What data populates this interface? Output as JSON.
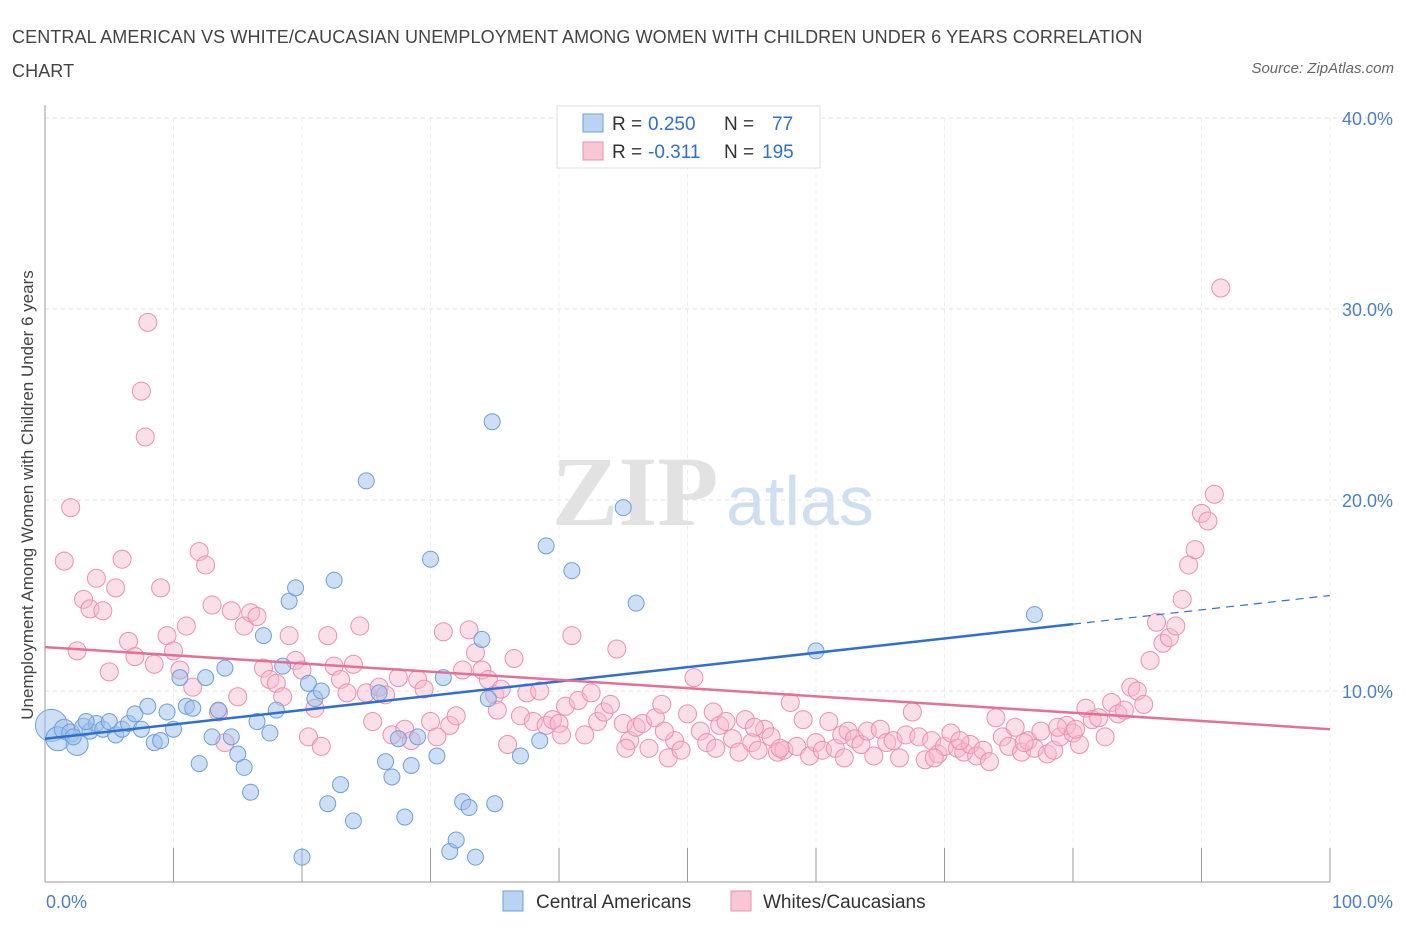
{
  "title": "CENTRAL AMERICAN VS WHITE/CAUCASIAN UNEMPLOYMENT AMONG WOMEN WITH CHILDREN UNDER 6 YEARS CORRELATION CHART",
  "source": "Source: ZipAtlas.com",
  "watermark": {
    "zip": "ZIP",
    "atlas": "atlas"
  },
  "legend": {
    "series1": {
      "r_label": "R = ",
      "r_value": "0.250",
      "n_label": "N = ",
      "n_value": "77"
    },
    "series2": {
      "r_label": "R = ",
      "r_value": "-0.311",
      "n_label": "N = ",
      "n_value": "195"
    }
  },
  "chart_data": {
    "type": "scatter",
    "title": "CENTRAL AMERICAN VS WHITE/CAUCASIAN UNEMPLOYMENT AMONG WOMEN WITH CHILDREN UNDER 6 YEARS CORRELATION CHART",
    "ylabel": "Unemployment Among Women with Children Under 6 years",
    "xlim": [
      0,
      100
    ],
    "ylim": [
      0,
      40
    ],
    "x_ticks": [
      "0.0%",
      "100.0%"
    ],
    "y_ticks": [
      {
        "value": 10,
        "label": "10.0%"
      },
      {
        "value": 20,
        "label": "20.0%"
      },
      {
        "value": 30,
        "label": "30.0%"
      },
      {
        "value": 40,
        "label": "40.0%"
      }
    ],
    "grid": true,
    "legend_position": "top-center",
    "series": [
      {
        "name": "Central Americans",
        "color": "#9bbfea",
        "stroke": "#6e9fdc",
        "line_color": "#2f6fd0",
        "trend": {
          "x0": 0,
          "y0": 7.5,
          "x1": 80,
          "y1": 13.5,
          "dashed_to_x": 100,
          "dashed_to_y": 15.0
        },
        "points": [
          [
            0.5,
            8.2,
            16
          ],
          [
            1,
            7.5,
            12
          ],
          [
            1.5,
            8.0,
            10
          ],
          [
            2,
            7.8,
            9
          ],
          [
            2.5,
            7.2,
            11
          ],
          [
            3,
            8.1,
            9
          ],
          [
            3.5,
            7.9,
            8
          ],
          [
            4,
            8.3,
            8
          ],
          [
            4.5,
            8.0,
            8
          ],
          [
            5,
            8.4,
            8
          ],
          [
            5.5,
            7.7,
            8
          ],
          [
            6,
            8.0,
            8
          ],
          [
            6.5,
            8.3,
            8
          ],
          [
            7,
            8.8,
            8
          ],
          [
            7.5,
            8.0,
            8
          ],
          [
            8,
            9.2,
            8
          ],
          [
            8.5,
            7.3,
            8
          ],
          [
            9,
            7.4,
            8
          ],
          [
            9.5,
            8.9,
            8
          ],
          [
            10,
            8.0,
            8
          ],
          [
            10.5,
            10.7,
            8
          ],
          [
            11,
            9.2,
            8
          ],
          [
            11.5,
            9.1,
            8
          ],
          [
            12,
            6.2,
            8
          ],
          [
            12.5,
            10.7,
            8
          ],
          [
            13,
            7.6,
            8
          ],
          [
            13.5,
            9.0,
            8
          ],
          [
            14,
            11.2,
            8
          ],
          [
            14.5,
            7.6,
            8
          ],
          [
            15,
            6.7,
            8
          ],
          [
            15.5,
            6.0,
            8
          ],
          [
            16,
            4.7,
            8
          ],
          [
            16.5,
            8.4,
            8
          ],
          [
            17,
            12.9,
            8
          ],
          [
            17.5,
            7.8,
            8
          ],
          [
            18,
            9.0,
            8
          ],
          [
            18.5,
            11.3,
            8
          ],
          [
            19,
            14.7,
            8
          ],
          [
            19.5,
            15.4,
            8
          ],
          [
            20,
            1.3,
            8
          ],
          [
            20.5,
            10.4,
            8
          ],
          [
            21,
            9.6,
            8
          ],
          [
            21.5,
            10.0,
            8
          ],
          [
            22,
            4.1,
            8
          ],
          [
            22.5,
            15.8,
            8
          ],
          [
            23,
            5.1,
            8
          ],
          [
            24,
            3.2,
            8
          ],
          [
            25,
            21.0,
            8
          ],
          [
            26,
            9.9,
            8
          ],
          [
            26.5,
            6.3,
            8
          ],
          [
            27,
            5.5,
            8
          ],
          [
            27.5,
            7.5,
            8
          ],
          [
            28,
            3.4,
            8
          ],
          [
            28.5,
            6.1,
            8
          ],
          [
            29,
            7.6,
            8
          ],
          [
            30,
            16.9,
            8
          ],
          [
            30.5,
            6.6,
            8
          ],
          [
            31,
            10.7,
            8
          ],
          [
            31.5,
            1.6,
            8
          ],
          [
            32,
            2.2,
            8
          ],
          [
            32.5,
            4.2,
            8
          ],
          [
            33,
            3.9,
            8
          ],
          [
            33.5,
            1.3,
            8
          ],
          [
            34,
            12.7,
            8
          ],
          [
            34.5,
            9.6,
            8
          ],
          [
            35,
            4.1,
            8
          ],
          [
            34.8,
            24.1,
            8
          ],
          [
            37,
            6.6,
            8
          ],
          [
            38.5,
            7.4,
            8
          ],
          [
            39,
            17.6,
            8
          ],
          [
            41,
            16.3,
            8
          ],
          [
            45,
            19.6,
            8
          ],
          [
            46,
            14.6,
            8
          ],
          [
            60,
            12.1,
            8
          ],
          [
            77,
            14.0,
            8
          ],
          [
            2.2,
            7.6,
            8
          ],
          [
            3.2,
            8.4,
            8
          ]
        ]
      },
      {
        "name": "Whites/Caucasians",
        "color": "#f6b8cb",
        "stroke": "#ec8fae",
        "line_color": "#e46f98",
        "trend": {
          "x0": 0,
          "y0": 12.3,
          "x1": 100,
          "y1": 8.0
        },
        "points": [
          [
            1.5,
            16.8
          ],
          [
            2,
            19.6
          ],
          [
            2.5,
            12.1
          ],
          [
            3,
            14.8
          ],
          [
            3.5,
            14.3
          ],
          [
            4,
            15.9
          ],
          [
            4.5,
            14.2
          ],
          [
            5,
            11.0
          ],
          [
            5.5,
            15.4
          ],
          [
            6,
            16.9
          ],
          [
            6.5,
            12.6
          ],
          [
            7,
            11.8
          ],
          [
            7.5,
            25.7
          ],
          [
            7.8,
            23.3
          ],
          [
            8,
            29.3
          ],
          [
            8.5,
            11.4
          ],
          [
            9,
            15.4
          ],
          [
            9.5,
            12.9
          ],
          [
            10,
            12.1
          ],
          [
            10.5,
            11.1
          ],
          [
            11,
            13.4
          ],
          [
            11.5,
            10.2
          ],
          [
            12,
            17.3
          ],
          [
            12.5,
            16.6
          ],
          [
            13,
            14.5
          ],
          [
            13.5,
            8.9
          ],
          [
            14,
            7.3
          ],
          [
            14.5,
            14.2
          ],
          [
            15,
            9.7
          ],
          [
            15.5,
            13.4
          ],
          [
            16,
            14.1
          ],
          [
            16.5,
            13.9
          ],
          [
            17,
            11.2
          ],
          [
            17.5,
            10.6
          ],
          [
            18,
            10.4
          ],
          [
            18.5,
            9.7
          ],
          [
            19,
            12.9
          ],
          [
            19.5,
            11.6
          ],
          [
            20,
            11.1
          ],
          [
            20.5,
            7.6
          ],
          [
            21,
            9.1
          ],
          [
            21.5,
            7.1
          ],
          [
            22,
            12.9
          ],
          [
            22.5,
            11.3
          ],
          [
            23,
            10.6
          ],
          [
            23.5,
            9.9
          ],
          [
            24,
            11.4
          ],
          [
            24.5,
            13.4
          ],
          [
            25,
            9.9
          ],
          [
            25.5,
            8.4
          ],
          [
            26,
            10.2
          ],
          [
            26.5,
            9.8
          ],
          [
            27,
            7.7
          ],
          [
            27.5,
            10.7
          ],
          [
            28,
            8.0
          ],
          [
            28.5,
            7.4
          ],
          [
            29,
            10.6
          ],
          [
            29.5,
            10.1
          ],
          [
            30,
            8.4
          ],
          [
            30.5,
            7.6
          ],
          [
            31,
            13.1
          ],
          [
            31.5,
            8.2
          ],
          [
            32,
            8.7
          ],
          [
            32.5,
            11.1
          ],
          [
            33,
            13.2
          ],
          [
            33.5,
            12.0
          ],
          [
            34,
            11.1
          ],
          [
            34.5,
            10.6
          ],
          [
            35,
            9.8
          ],
          [
            35.5,
            10.1
          ],
          [
            36,
            7.2
          ],
          [
            36.5,
            11.7
          ],
          [
            37,
            8.7
          ],
          [
            37.5,
            9.9
          ],
          [
            38,
            8.4
          ],
          [
            38.5,
            10.0
          ],
          [
            39,
            8.2
          ],
          [
            39.5,
            8.5
          ],
          [
            40,
            8.3
          ],
          [
            40.5,
            9.2
          ],
          [
            41,
            12.9
          ],
          [
            41.5,
            9.5
          ],
          [
            42,
            7.7
          ],
          [
            42.5,
            9.9
          ],
          [
            43,
            8.4
          ],
          [
            43.5,
            8.9
          ],
          [
            44,
            9.3
          ],
          [
            44.5,
            12.2
          ],
          [
            45,
            8.3
          ],
          [
            45.5,
            7.4
          ],
          [
            46,
            8.1
          ],
          [
            46.5,
            8.3
          ],
          [
            47,
            7.0
          ],
          [
            47.5,
            8.6
          ],
          [
            48,
            9.3
          ],
          [
            48.5,
            6.5
          ],
          [
            49,
            7.4
          ],
          [
            49.5,
            6.9
          ],
          [
            50,
            8.8
          ],
          [
            50.5,
            10.7
          ],
          [
            51,
            7.9
          ],
          [
            51.5,
            7.3
          ],
          [
            52,
            8.9
          ],
          [
            52.5,
            8.2
          ],
          [
            53,
            8.4
          ],
          [
            53.5,
            7.5
          ],
          [
            54,
            6.8
          ],
          [
            54.5,
            8.5
          ],
          [
            55,
            7.3
          ],
          [
            55.5,
            6.9
          ],
          [
            56,
            8.0
          ],
          [
            56.5,
            7.6
          ],
          [
            57,
            6.8
          ],
          [
            57.5,
            6.9
          ],
          [
            58,
            9.4
          ],
          [
            58.5,
            7.1
          ],
          [
            59,
            8.5
          ],
          [
            59.5,
            6.6
          ],
          [
            60,
            7.3
          ],
          [
            60.5,
            6.9
          ],
          [
            61,
            8.4
          ],
          [
            61.5,
            7.0
          ],
          [
            62,
            7.7
          ],
          [
            62.5,
            7.9
          ],
          [
            63,
            7.5
          ],
          [
            63.5,
            7.2
          ],
          [
            64,
            7.9
          ],
          [
            64.5,
            6.6
          ],
          [
            65,
            8.0
          ],
          [
            65.5,
            7.3
          ],
          [
            66,
            7.4
          ],
          [
            66.5,
            6.5
          ],
          [
            67,
            7.7
          ],
          [
            67.5,
            8.9
          ],
          [
            68,
            7.6
          ],
          [
            68.5,
            6.4
          ],
          [
            69,
            7.4
          ],
          [
            69.5,
            6.7
          ],
          [
            70,
            7.1
          ],
          [
            70.5,
            7.8
          ],
          [
            71,
            7.0
          ],
          [
            71.5,
            6.8
          ],
          [
            72,
            7.2
          ],
          [
            72.5,
            6.6
          ],
          [
            73,
            6.9
          ],
          [
            73.5,
            6.3
          ],
          [
            74,
            8.6
          ],
          [
            74.5,
            7.6
          ],
          [
            75,
            7.1
          ],
          [
            75.5,
            8.1
          ],
          [
            76,
            6.8
          ],
          [
            76.5,
            7.4
          ],
          [
            77,
            7.0
          ],
          [
            77.5,
            7.9
          ],
          [
            78,
            6.7
          ],
          [
            78.5,
            6.9
          ],
          [
            79,
            7.6
          ],
          [
            79.5,
            8.2
          ],
          [
            80,
            7.8
          ],
          [
            80.5,
            7.2
          ],
          [
            81,
            9.1
          ],
          [
            81.5,
            8.5
          ],
          [
            82,
            8.6
          ],
          [
            82.5,
            7.6
          ],
          [
            83,
            9.4
          ],
          [
            83.5,
            8.8
          ],
          [
            84,
            9.0
          ],
          [
            84.5,
            10.2
          ],
          [
            85,
            10.0
          ],
          [
            85.5,
            9.3
          ],
          [
            86,
            11.6
          ],
          [
            86.5,
            13.6
          ],
          [
            87,
            12.5
          ],
          [
            87.5,
            12.8
          ],
          [
            88,
            13.4
          ],
          [
            88.5,
            14.8
          ],
          [
            89,
            16.6
          ],
          [
            89.5,
            17.4
          ],
          [
            90,
            19.3
          ],
          [
            90.5,
            18.9
          ],
          [
            91,
            20.3
          ],
          [
            91.5,
            31.1
          ],
          [
            80.2,
            8.0
          ],
          [
            78.8,
            8.1
          ],
          [
            76.2,
            7.3
          ],
          [
            71.2,
            7.4
          ],
          [
            69.2,
            6.5
          ],
          [
            62.2,
            6.5
          ],
          [
            57.2,
            7.0
          ],
          [
            55.2,
            8.1
          ],
          [
            52.2,
            7.0
          ],
          [
            48.2,
            7.9
          ],
          [
            45.2,
            7.0
          ],
          [
            40.2,
            7.7
          ],
          [
            35.2,
            9.0
          ]
        ]
      }
    ]
  },
  "bottom_legend": [
    "Central Americans",
    "Whites/Caucasians"
  ]
}
